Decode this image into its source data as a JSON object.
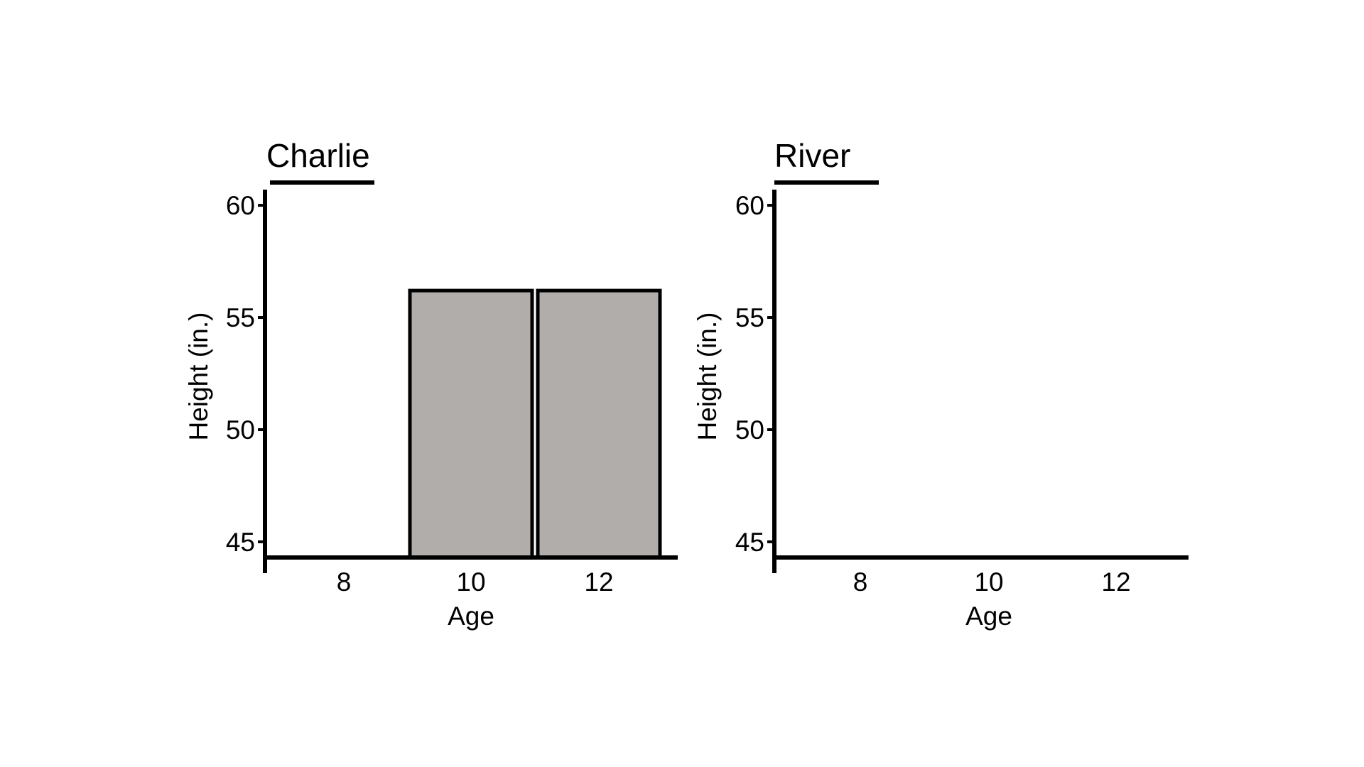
{
  "chart_data": [
    {
      "type": "bar",
      "title": "Charlie",
      "xlabel": "Age",
      "ylabel": "Height (in.)",
      "categories": [
        "8",
        "10",
        "12"
      ],
      "values": [
        null,
        56.2,
        56.2
      ],
      "ylim": [
        44.3,
        60.7
      ],
      "yticks": [
        45,
        50,
        55,
        60
      ],
      "grid": false,
      "bar_color": "#b0adab"
    },
    {
      "type": "bar",
      "title": "River",
      "xlabel": "Age",
      "ylabel": "Height (in.)",
      "categories": [
        "8",
        "10",
        "12"
      ],
      "values": [
        null,
        null,
        null
      ],
      "ylim": [
        44.3,
        60.7
      ],
      "yticks": [
        45,
        50,
        55,
        60
      ],
      "grid": false,
      "bar_color": "#b0adab"
    }
  ]
}
